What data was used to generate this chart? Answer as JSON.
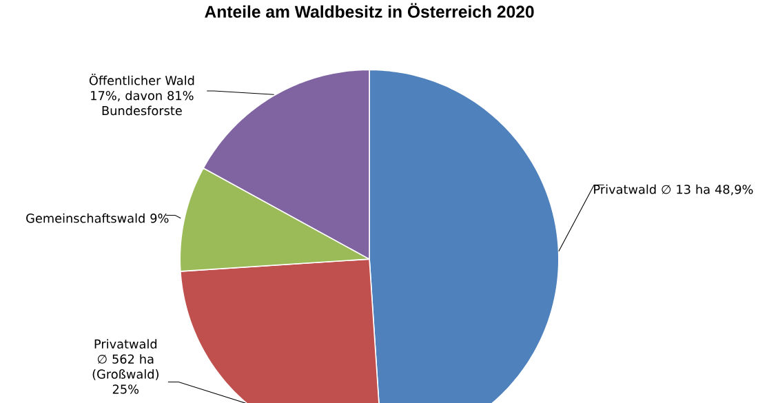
{
  "chart_data": {
    "type": "pie",
    "title": "Anteile am Waldbesitz in Österreich 2020",
    "categories": [
      "Privatwald ∅ 13 ha",
      "Privatwald ∅ 562 ha (Großwald)",
      "Gemeinschaftswald",
      "Öffentlicher Wald"
    ],
    "values": [
      48.9,
      25,
      9,
      17
    ],
    "colors": [
      "#4f81bd",
      "#c0504d",
      "#9bbb59",
      "#8064a2"
    ],
    "value_labels": [
      "48,9%",
      "25%",
      "9%",
      "17%, davon 81% Bundesforste"
    ]
  }
}
